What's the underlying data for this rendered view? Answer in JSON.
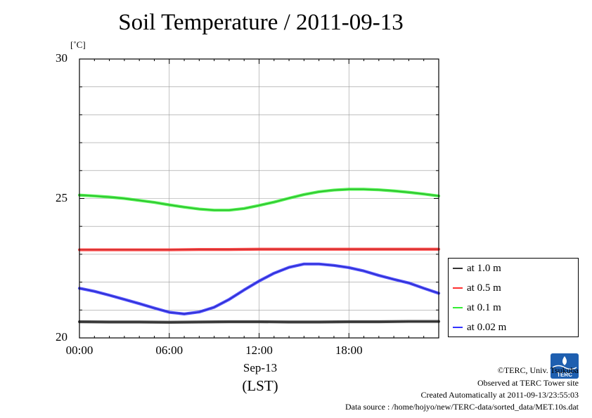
{
  "chart_data": {
    "type": "line",
    "title": "Soil Temperature / 2011-09-13",
    "ylabel": "[˚C]",
    "xlabel_date": "Sep-13",
    "xlabel_tz": "(LST)",
    "xlim": [
      0,
      24
    ],
    "ylim": [
      20,
      30
    ],
    "x_ticks": [
      "00:00",
      "06:00",
      "12:00",
      "18:00"
    ],
    "x_tick_values": [
      0,
      6,
      12,
      18
    ],
    "y_ticks": [
      "20",
      "25",
      "30"
    ],
    "y_tick_values": [
      20,
      25,
      30
    ],
    "y_gridlines": [
      21,
      22,
      23,
      24,
      25,
      26,
      27,
      28,
      29
    ],
    "x_gridlines": [
      6,
      12,
      18
    ],
    "grid": true,
    "legend_placement": "right",
    "series": [
      {
        "name": "at 1.0 m",
        "color": "#333333",
        "x": [
          0,
          2,
          4,
          6,
          8,
          10,
          12,
          14,
          16,
          18,
          20,
          22,
          24
        ],
        "y": [
          20.58,
          20.57,
          20.57,
          20.56,
          20.57,
          20.58,
          20.58,
          20.57,
          20.57,
          20.58,
          20.58,
          20.59,
          20.59
        ]
      },
      {
        "name": "at 0.5 m",
        "color": "#ff3030",
        "x": [
          0,
          2,
          4,
          6,
          8,
          10,
          12,
          14,
          16,
          18,
          20,
          22,
          24
        ],
        "y": [
          23.16,
          23.16,
          23.16,
          23.16,
          23.17,
          23.17,
          23.18,
          23.18,
          23.18,
          23.18,
          23.18,
          23.18,
          23.18
        ]
      },
      {
        "name": "at 0.1 m",
        "color": "#33ee33",
        "x": [
          0,
          1,
          2,
          3,
          4,
          5,
          6,
          7,
          8,
          9,
          10,
          11,
          12,
          13,
          14,
          15,
          16,
          17,
          18,
          19,
          20,
          21,
          22,
          23,
          24
        ],
        "y": [
          25.12,
          25.09,
          25.05,
          25.0,
          24.93,
          24.86,
          24.77,
          24.69,
          24.62,
          24.58,
          24.58,
          24.64,
          24.75,
          24.87,
          25.01,
          25.14,
          25.24,
          25.3,
          25.33,
          25.33,
          25.31,
          25.27,
          25.22,
          25.16,
          25.09
        ]
      },
      {
        "name": "at 0.02 m",
        "color": "#3333ff",
        "x": [
          0,
          1,
          2,
          3,
          4,
          5,
          6,
          7,
          8,
          9,
          10,
          11,
          12,
          13,
          14,
          15,
          16,
          17,
          18,
          19,
          20,
          21,
          22,
          23,
          24
        ],
        "y": [
          21.78,
          21.67,
          21.53,
          21.38,
          21.23,
          21.07,
          20.92,
          20.86,
          20.93,
          21.1,
          21.38,
          21.72,
          22.04,
          22.32,
          22.53,
          22.65,
          22.65,
          22.6,
          22.52,
          22.4,
          22.24,
          22.1,
          21.97,
          21.78,
          21.6
        ]
      }
    ]
  },
  "credits": {
    "copyright": "©TERC, Univ. Tsukuba",
    "site": "Observed at TERC Tower site",
    "created": "Created Automatically at 2011-09-13/23:55:03",
    "source": "Data source : /home/hojyo/new/TERC-data/sorted_data/MET.10s.dat",
    "logo_text": "TERC"
  }
}
